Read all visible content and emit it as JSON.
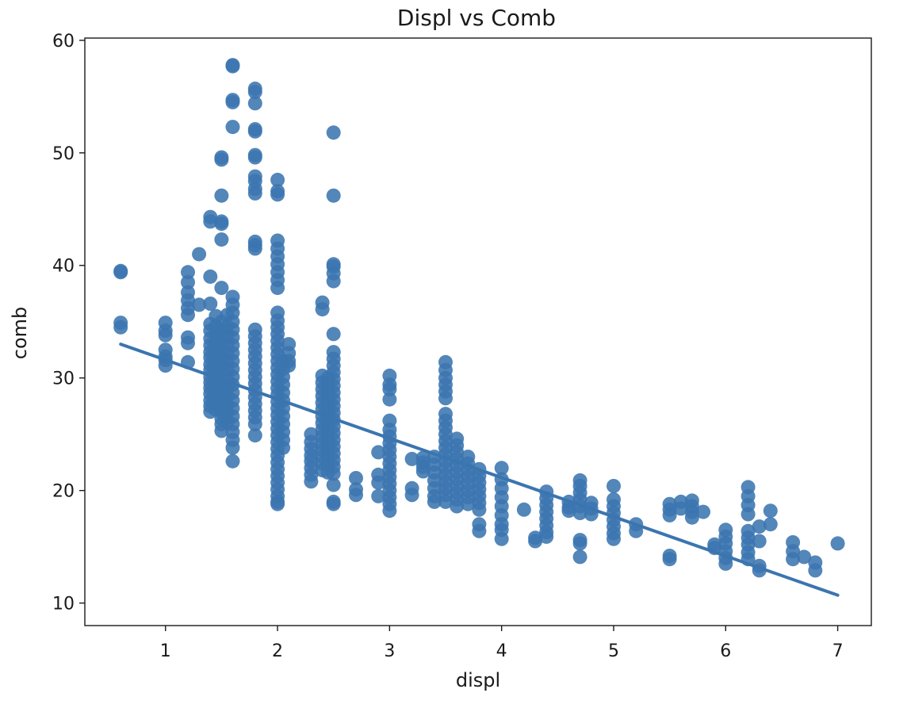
{
  "chart_data": {
    "type": "scatter",
    "title": "Displ vs Comb",
    "xlabel": "displ",
    "ylabel": "comb",
    "xlim": [
      0.28,
      7.3
    ],
    "ylim": [
      8,
      60.2
    ],
    "xticks": [
      1,
      2,
      3,
      4,
      5,
      6,
      7
    ],
    "yticks": [
      10,
      20,
      30,
      40,
      50,
      60
    ],
    "grid": false,
    "legend": "none",
    "colors": {
      "point": "#3b75af",
      "line": "#3b75af",
      "axis": "#1a1a1a"
    },
    "regression_line": {
      "x": [
        0.6,
        7.0
      ],
      "y": [
        33.0,
        10.7
      ]
    },
    "series": [
      {
        "name": "points",
        "columns": [
          {
            "x": 0.6,
            "y": [
              39.4,
              39.5,
              34.9,
              34.5
            ]
          },
          {
            "x": 1.0,
            "y": [
              34.9,
              34.2,
              33.8,
              32.5,
              31.9,
              31.1,
              31.6
            ]
          },
          {
            "x": 1.2,
            "y": [
              39.4,
              38.5,
              37.6,
              36.9,
              36.2,
              35.6,
              33.6,
              33.1,
              31.4
            ]
          },
          {
            "x": 1.3,
            "y": [
              41.0,
              36.5
            ]
          },
          {
            "x": 1.4,
            "y": [
              44.3,
              43.9,
              39.0,
              36.6,
              34.8,
              34.2,
              33.5,
              32.9,
              32.3,
              31.8,
              31.2,
              30.7,
              30.1,
              29.6,
              29.1,
              28.6,
              28.0,
              27.5,
              27.0
            ]
          },
          {
            "x": 1.45,
            "y": [
              35.5,
              34.6,
              33.9,
              33.3,
              32.8,
              32.2,
              31.6,
              31.1,
              30.6,
              30.0,
              29.5,
              28.9,
              28.4,
              27.8,
              27.2
            ]
          },
          {
            "x": 1.5,
            "y": [
              49.6,
              49.4,
              46.2,
              43.9,
              43.7,
              42.3,
              38.0,
              35.0,
              34.3,
              33.6,
              33.0,
              32.4,
              31.8,
              31.2,
              30.6,
              30.0,
              29.4,
              28.8,
              28.2,
              27.6,
              27.0,
              26.4,
              25.9,
              25.3
            ]
          },
          {
            "x": 1.55,
            "y": [
              35.6,
              34.6,
              33.8,
              33.0,
              32.2,
              31.4,
              30.7,
              29.9,
              29.1,
              28.4,
              27.6,
              26.9,
              26.1
            ]
          },
          {
            "x": 1.6,
            "y": [
              57.8,
              57.7,
              54.7,
              54.5,
              52.3,
              37.2,
              36.5,
              35.8,
              35.0,
              34.3,
              33.6,
              32.9,
              32.2,
              31.5,
              30.8,
              30.1,
              29.4,
              28.7,
              28.0,
              27.3,
              26.6,
              25.9,
              25.2,
              24.5,
              23.8,
              22.6
            ]
          },
          {
            "x": 1.8,
            "y": [
              55.7,
              55.4,
              54.4,
              52.1,
              51.9,
              49.8,
              49.6,
              47.9,
              47.5,
              46.8,
              46.4,
              42.1,
              41.8,
              41.5,
              34.3,
              33.7,
              33.1,
              32.5,
              31.9,
              31.3,
              30.7,
              30.1,
              29.5,
              28.9,
              28.3,
              27.7,
              27.1,
              26.5,
              25.9,
              24.9
            ]
          },
          {
            "x": 2.0,
            "y": [
              47.6,
              46.6,
              46.3,
              42.2,
              41.5,
              40.8,
              40.1,
              39.4,
              38.7,
              38.0,
              35.8,
              35.1,
              34.5,
              33.9,
              33.3,
              32.7,
              32.1,
              31.5,
              30.9,
              30.3,
              29.7,
              29.1,
              28.5,
              27.9,
              27.3,
              26.7,
              26.1,
              25.5,
              24.9,
              24.3,
              23.7,
              23.1,
              22.5,
              21.9,
              21.3,
              20.7,
              20.1,
              19.5,
              19.0,
              18.8
            ]
          },
          {
            "x": 2.05,
            "y": [
              31.5,
              30.8,
              30.1,
              29.4,
              28.7,
              28.0,
              27.3,
              26.6,
              25.9,
              25.2,
              24.5,
              23.8
            ]
          },
          {
            "x": 2.1,
            "y": [
              33.0,
              32.2,
              31.5,
              31.1
            ]
          },
          {
            "x": 2.3,
            "y": [
              25.0,
              24.3,
              23.7,
              23.1,
              22.6,
              22.0,
              21.4,
              20.8
            ]
          },
          {
            "x": 2.4,
            "y": [
              36.7,
              36.1,
              30.2,
              29.6,
              29.0,
              28.4,
              27.8,
              27.2,
              26.6,
              26.0,
              25.4,
              24.8,
              24.2,
              23.6,
              23.0,
              22.4,
              21.8
            ]
          },
          {
            "x": 2.45,
            "y": [
              30.0,
              29.3,
              28.6,
              27.9,
              27.2,
              26.5,
              25.8,
              25.1,
              24.4,
              23.7,
              23.0,
              22.3,
              21.6
            ]
          },
          {
            "x": 2.5,
            "y": [
              51.8,
              46.2,
              40.1,
              39.9,
              39.3,
              38.6,
              33.9,
              32.3,
              31.7,
              31.1,
              30.5,
              29.9,
              29.3,
              28.7,
              28.1,
              27.5,
              26.9,
              26.3,
              25.7,
              25.1,
              24.5,
              23.9,
              23.3,
              22.7,
              22.1,
              21.5,
              20.5,
              19.0,
              18.8
            ]
          },
          {
            "x": 2.7,
            "y": [
              21.1,
              20.1,
              19.6
            ]
          },
          {
            "x": 2.9,
            "y": [
              23.4,
              21.4,
              20.7,
              19.5
            ]
          },
          {
            "x": 3.0,
            "y": [
              30.2,
              29.4,
              29.0,
              28.1,
              26.2,
              25.4,
              24.8,
              24.2,
              23.6,
              23.0,
              22.4,
              21.8,
              21.2,
              20.6,
              20.0,
              19.4,
              18.8,
              18.2
            ]
          },
          {
            "x": 3.2,
            "y": [
              22.8,
              20.2,
              19.6
            ]
          },
          {
            "x": 3.3,
            "y": [
              22.9,
              22.5,
              22.1,
              21.7
            ]
          },
          {
            "x": 3.4,
            "y": [
              23.0,
              22.3,
              21.6,
              20.9,
              20.2,
              19.5,
              19.0
            ]
          },
          {
            "x": 3.5,
            "y": [
              31.4,
              30.7,
              30.0,
              29.4,
              28.8,
              28.2,
              26.8,
              26.2,
              25.6,
              25.0,
              24.4,
              23.8,
              23.2,
              22.6,
              22.0,
              21.4,
              20.8,
              20.2,
              19.6,
              19.0
            ]
          },
          {
            "x": 3.6,
            "y": [
              24.6,
              24.0,
              23.4,
              22.8,
              22.2,
              21.6,
              21.0,
              20.4,
              19.8,
              19.2,
              18.6
            ]
          },
          {
            "x": 3.7,
            "y": [
              23.0,
              22.4,
              21.8,
              21.2,
              20.6,
              20.0,
              19.4,
              18.8
            ]
          },
          {
            "x": 3.8,
            "y": [
              21.9,
              21.3,
              20.7,
              20.1,
              19.5,
              18.9,
              18.3,
              17.0,
              16.4
            ]
          },
          {
            "x": 4.0,
            "y": [
              22.0,
              21.0,
              20.2,
              19.4,
              18.6,
              17.8,
              17.0,
              16.5,
              15.7
            ]
          },
          {
            "x": 4.2,
            "y": [
              18.3
            ]
          },
          {
            "x": 4.3,
            "y": [
              15.8,
              15.5
            ]
          },
          {
            "x": 4.4,
            "y": [
              19.9,
              19.3,
              18.7,
              18.1,
              17.5,
              16.9,
              16.3,
              15.9
            ]
          },
          {
            "x": 4.6,
            "y": [
              19.0,
              18.5,
              18.2
            ]
          },
          {
            "x": 4.7,
            "y": [
              20.9,
              20.4,
              19.8,
              19.2,
              18.6,
              18.0,
              15.6,
              15.3,
              14.1
            ]
          },
          {
            "x": 4.8,
            "y": [
              18.9,
              18.4,
              17.9
            ]
          },
          {
            "x": 5.0,
            "y": [
              20.4,
              19.2,
              18.6,
              18.0,
              17.4,
              16.8,
              16.2,
              15.7
            ]
          },
          {
            "x": 5.2,
            "y": [
              17.0,
              16.4
            ]
          },
          {
            "x": 5.5,
            "y": [
              18.8,
              18.3,
              17.8,
              14.2,
              13.9
            ]
          },
          {
            "x": 5.6,
            "y": [
              19.0,
              18.4
            ]
          },
          {
            "x": 5.7,
            "y": [
              19.1,
              18.6,
              18.1,
              17.6
            ]
          },
          {
            "x": 5.8,
            "y": [
              18.1
            ]
          },
          {
            "x": 5.9,
            "y": [
              15.2,
              14.9
            ]
          },
          {
            "x": 6.0,
            "y": [
              16.5,
              15.9,
              15.3,
              14.6,
              14.0,
              13.5
            ]
          },
          {
            "x": 6.2,
            "y": [
              20.3,
              19.5,
              18.7,
              17.9,
              16.4,
              15.8,
              15.2,
              14.5,
              13.9
            ]
          },
          {
            "x": 6.3,
            "y": [
              16.8,
              15.5,
              13.3,
              12.9
            ]
          },
          {
            "x": 6.4,
            "y": [
              18.2,
              17.0
            ]
          },
          {
            "x": 6.6,
            "y": [
              15.4,
              14.6,
              13.9
            ]
          },
          {
            "x": 6.7,
            "y": [
              14.1
            ]
          },
          {
            "x": 6.8,
            "y": [
              13.6,
              12.9
            ]
          },
          {
            "x": 7.0,
            "y": [
              15.3
            ]
          }
        ]
      }
    ]
  }
}
